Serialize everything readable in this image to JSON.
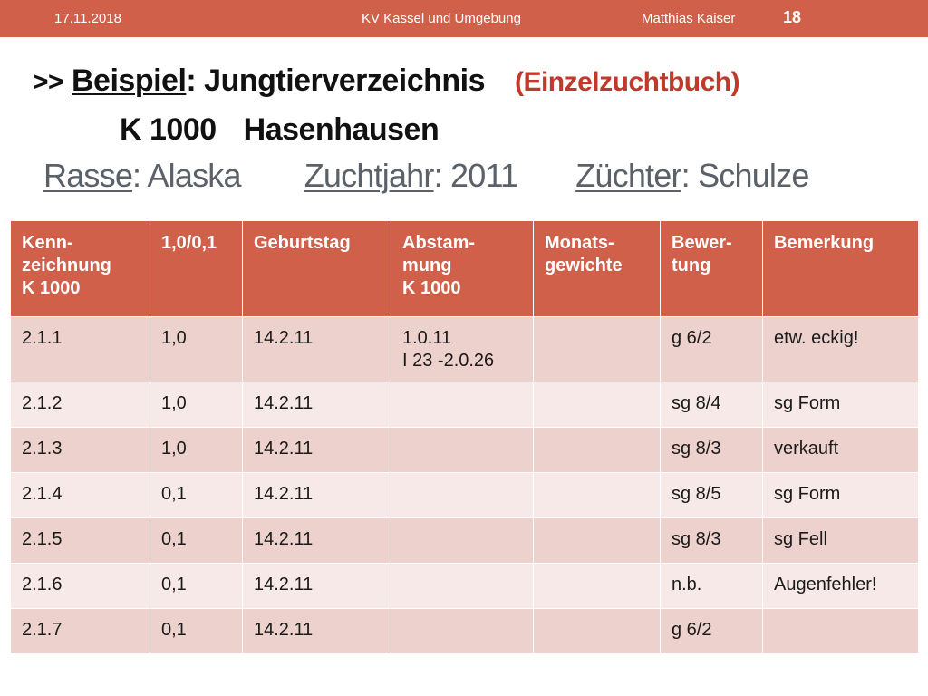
{
  "header": {
    "date": "17.11.2018",
    "center": "KV Kassel und Umgebung",
    "author": "Matthias Kaiser",
    "page": "18"
  },
  "title": {
    "prefix": ">>",
    "word1": "Beispiel",
    "word1_rest": ": Jungtierverzeichnis",
    "sub": "(Einzelzuchtbuch)"
  },
  "line2": {
    "code": "K 1000",
    "name": "Hasenhausen"
  },
  "line3": {
    "rasse_label": "Rasse",
    "rasse_value": ": Alaska",
    "zuchtjahr_label": "Zuchtjahr",
    "zuchtjahr_value": ": 2011",
    "zuechter_label": "Züchter",
    "zuechter_value": ": Schulze"
  },
  "table": {
    "headers": [
      [
        "Kenn-",
        "zeichnung",
        "K 1000"
      ],
      [
        "1,0/0,1"
      ],
      [
        "Geburtstag"
      ],
      [
        "Abstam-",
        "mung",
        "K 1000"
      ],
      [
        "Monats-",
        "gewichte"
      ],
      [
        "Bewer-",
        "tung"
      ],
      [
        "Bemerkung"
      ]
    ],
    "rows": [
      {
        "kenn": "2.1.1",
        "sex": "1,0",
        "geb": "14.2.11",
        "abst1": "1.0.11",
        "abst2": "I 23 -2.0.26",
        "gew": "",
        "bew": "g 6/2",
        "bem": "etw. eckig!"
      },
      {
        "kenn": "2.1.2",
        "sex": "1,0",
        "geb": "14.2.11",
        "abst1": "",
        "abst2": "",
        "gew": "",
        "bew": "sg 8/4",
        "bem": "sg Form"
      },
      {
        "kenn": "2.1.3",
        "sex": "1,0",
        "geb": "14.2.11",
        "abst1": "",
        "abst2": "",
        "gew": "",
        "bew": "sg 8/3",
        "bem": "verkauft"
      },
      {
        "kenn": "2.1.4",
        "sex": "0,1",
        "geb": "14.2.11",
        "abst1": "",
        "abst2": "",
        "gew": "",
        "bew": "sg 8/5",
        "bem": "sg Form"
      },
      {
        "kenn": "2.1.5",
        "sex": "0,1",
        "geb": "14.2.11",
        "abst1": "",
        "abst2": "",
        "gew": "",
        "bew": "sg 8/3",
        "bem": "sg Fell"
      },
      {
        "kenn": "2.1.6",
        "sex": "0,1",
        "geb": "14.2.11",
        "abst1": "",
        "abst2": "",
        "gew": "",
        "bew": "n.b.",
        "bem": "Augenfehler!"
      },
      {
        "kenn": "2.1.7",
        "sex": "0,1",
        "geb": "14.2.11",
        "abst1": "",
        "abst2": "",
        "gew": "",
        "bew": "g 6/2",
        "bem": ""
      }
    ]
  },
  "colors": {
    "accent": "#d0604a",
    "row_dark": "#edd1cd",
    "row_light": "#f7e9e7",
    "subtitle_red": "#c0392b",
    "grey_text": "#5b6168"
  }
}
